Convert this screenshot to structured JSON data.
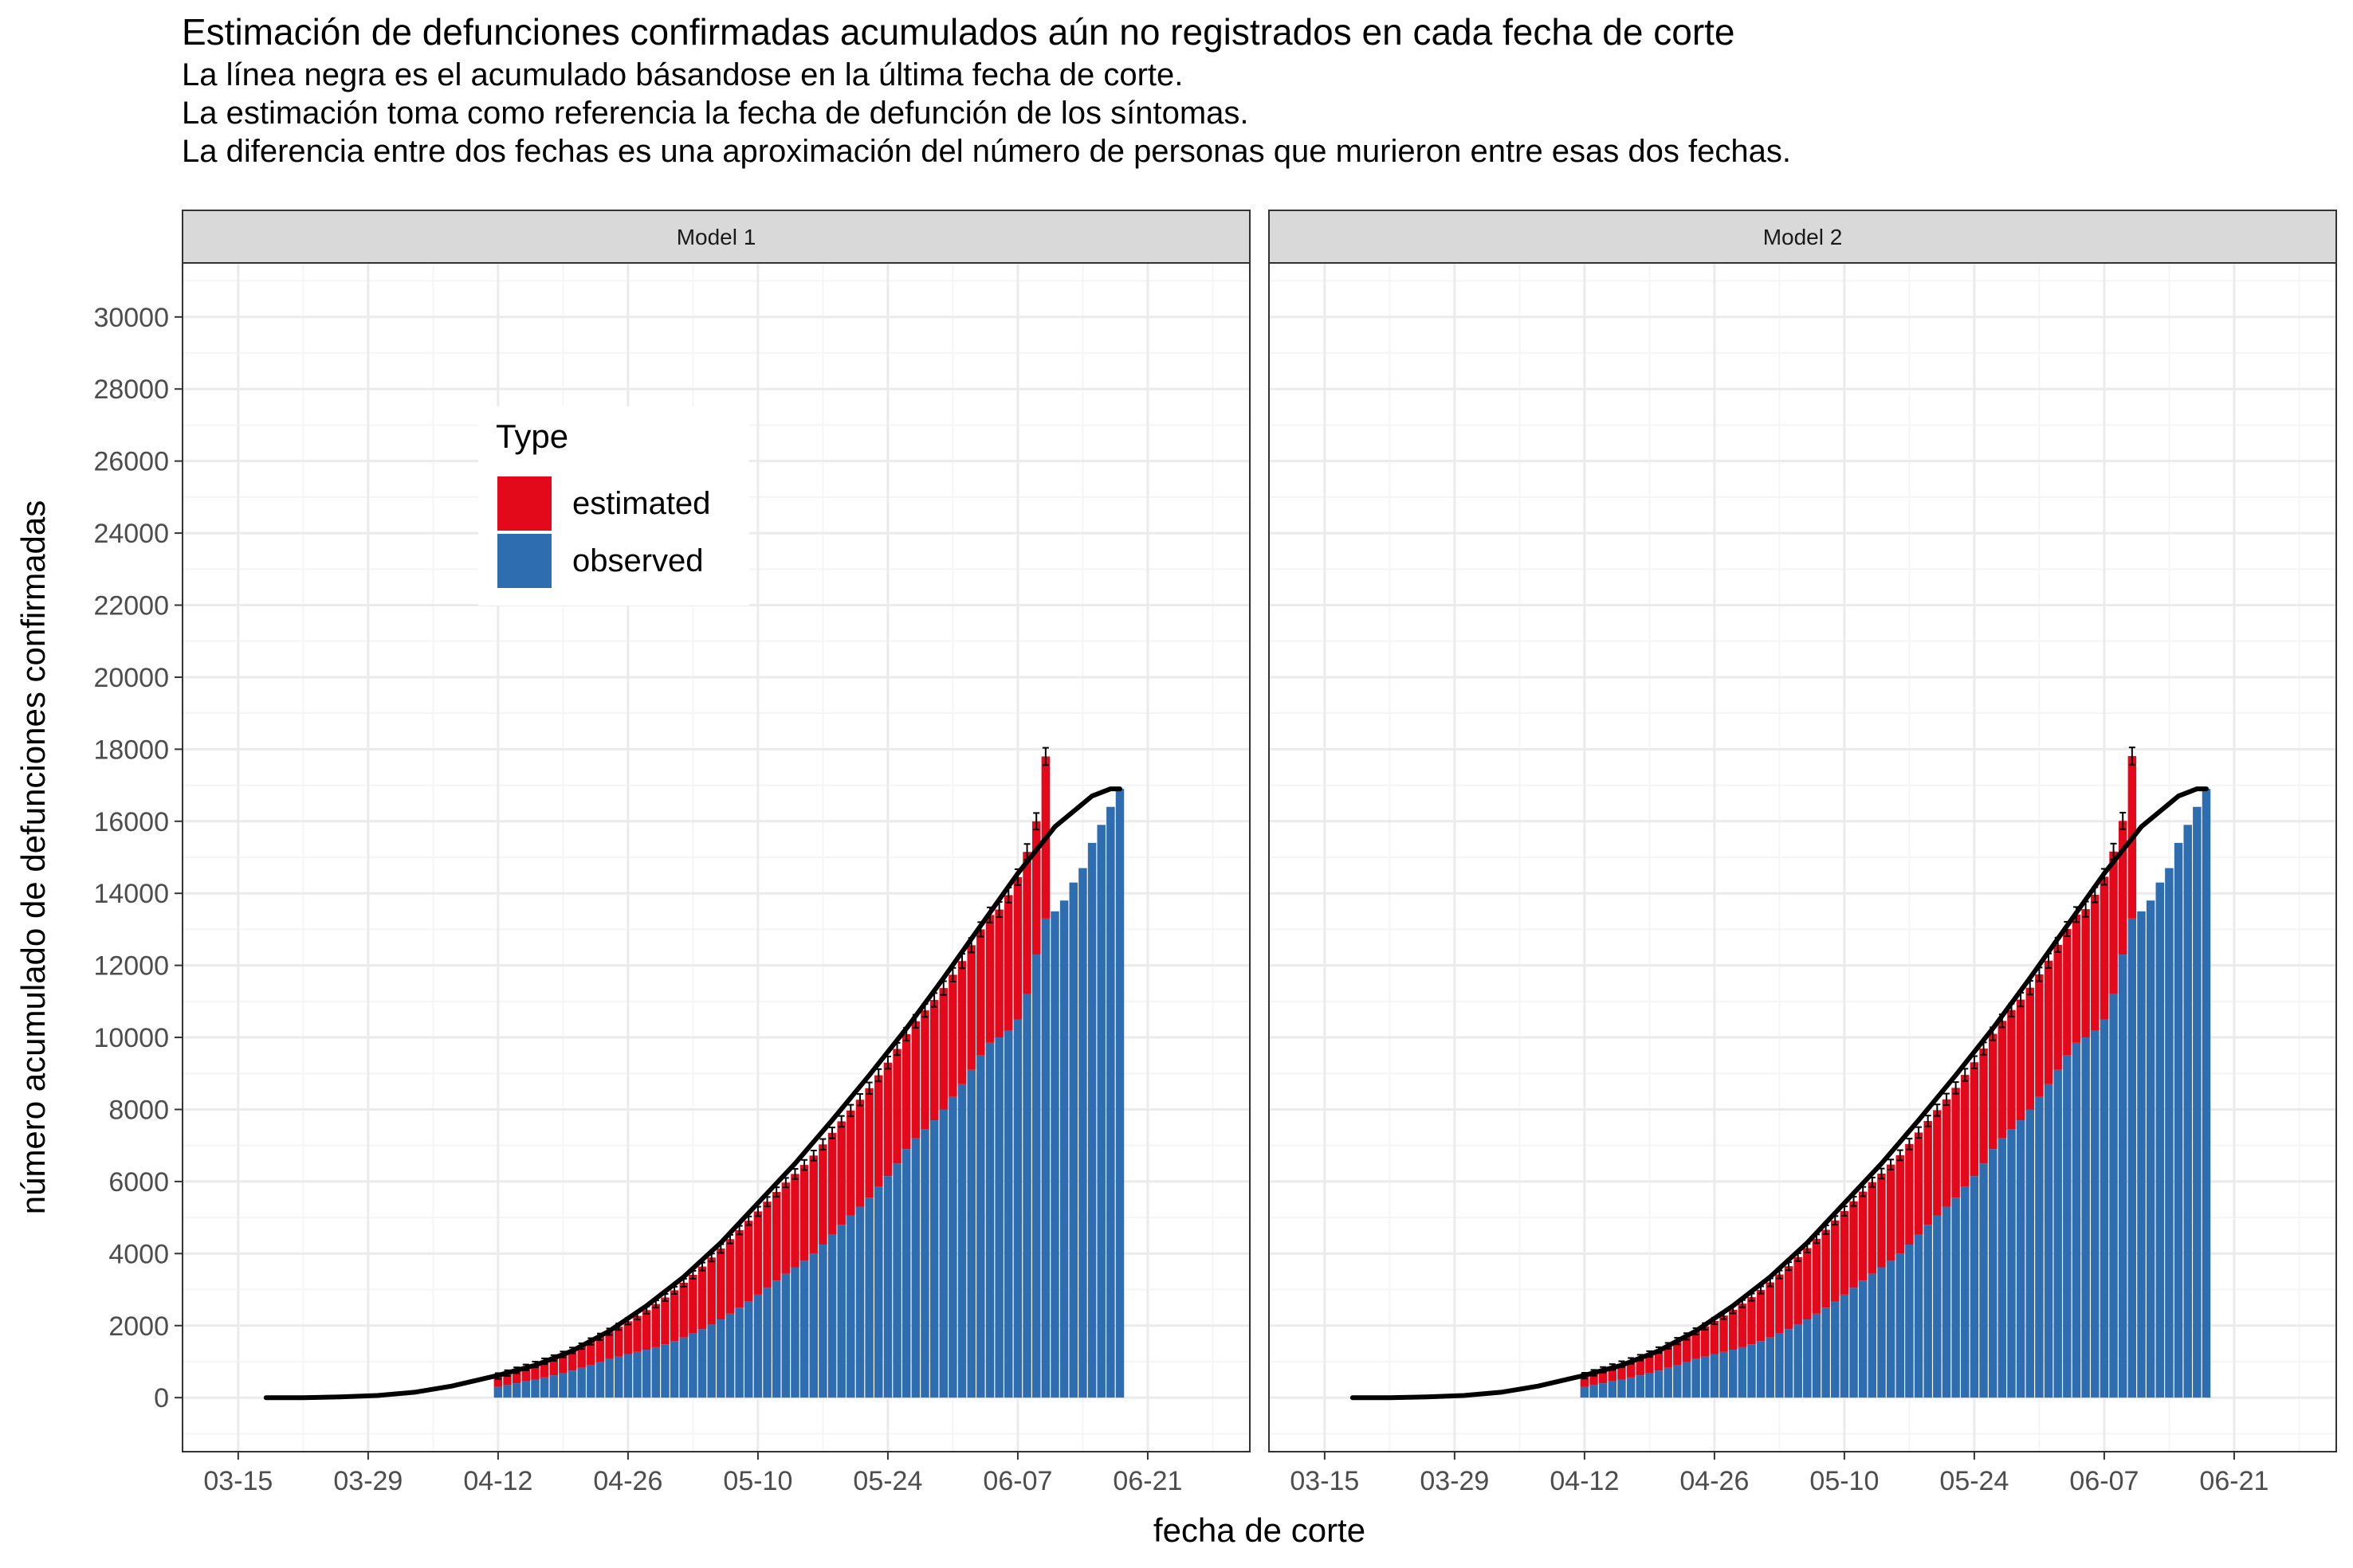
{
  "title": "Estimación de defunciones confirmadas acumulados aún no registrados en cada fecha de corte",
  "subtitle_lines": [
    "La línea negra es el acumulado básandose en la última fecha de corte.",
    "La estimación toma como referencia la fecha de defunción de los síntomas.",
    "La diferencia entre dos fechas es una aproximación del número de personas que murieron entre esas dos fechas."
  ],
  "colors": {
    "estimated": "#E3091A",
    "observed": "#2E6DB0",
    "strip_fill": "#D9D9D9",
    "grid_major": "#EBEBEB",
    "grid_minor": "#F5F5F5",
    "panel_border": "#333333",
    "line": "#000000"
  },
  "chart_data": {
    "type": "bar",
    "stacked": true,
    "xlabel": "fecha de corte",
    "ylabel": "número acumulado de defunciones confirmadas",
    "x_range": [
      "2020-03-09",
      "2020-07-02"
    ],
    "x_ticks": [
      "03-15",
      "03-29",
      "04-12",
      "04-26",
      "05-10",
      "05-24",
      "06-07",
      "06-21"
    ],
    "ylim": [
      -1500,
      31500
    ],
    "y_ticks": [
      0,
      2000,
      4000,
      6000,
      8000,
      10000,
      12000,
      14000,
      16000,
      18000,
      20000,
      22000,
      24000,
      26000,
      28000,
      30000
    ],
    "grid": true,
    "legend": {
      "title": "Type",
      "position": "top-left inside first panel",
      "entries": [
        {
          "key": "estimated",
          "label": "estimated"
        },
        {
          "key": "observed",
          "label": "observed"
        }
      ]
    },
    "facets": [
      {
        "label": "Model 1",
        "bars": {
          "start_date": "2020-04-12",
          "observed": [
            300,
            350,
            400,
            450,
            500,
            560,
            620,
            680,
            750,
            830,
            910,
            990,
            1070,
            1140,
            1210,
            1270,
            1330,
            1400,
            1480,
            1570,
            1670,
            1780,
            1900,
            2030,
            2170,
            2330,
            2500,
            2680,
            2860,
            3050,
            3250,
            3440,
            3620,
            3800,
            4000,
            4250,
            4520,
            4800,
            5050,
            5300,
            5550,
            5850,
            6150,
            6500,
            6900,
            7200,
            7450,
            7700,
            8000,
            8350,
            8700,
            9100,
            9500,
            9850,
            10000,
            10200,
            10500,
            11200,
            12300,
            13300,
            13500,
            13800,
            14300,
            14700,
            15400,
            15900,
            16400,
            16900
          ],
          "estimated": [
            300,
            330,
            360,
            390,
            420,
            450,
            480,
            520,
            560,
            600,
            650,
            700,
            760,
            830,
            910,
            1000,
            1100,
            1200,
            1300,
            1410,
            1520,
            1630,
            1740,
            1860,
            1970,
            2070,
            2150,
            2230,
            2310,
            2390,
            2460,
            2530,
            2590,
            2660,
            2720,
            2780,
            2830,
            2870,
            2920,
            2970,
            3040,
            3100,
            3150,
            3180,
            3190,
            3250,
            3300,
            3340,
            3370,
            3390,
            3420,
            3460,
            3500,
            3550,
            3550,
            3750,
            3950,
            3950,
            3700,
            4500,
            0,
            0,
            0,
            0,
            0,
            0,
            0,
            0
          ],
          "error": [
            80,
            80,
            80,
            80,
            80,
            80,
            80,
            80,
            80,
            80,
            90,
            90,
            90,
            90,
            90,
            100,
            100,
            100,
            100,
            100,
            110,
            110,
            110,
            110,
            120,
            120,
            120,
            120,
            130,
            130,
            130,
            130,
            140,
            140,
            140,
            150,
            150,
            150,
            160,
            160,
            160,
            170,
            170,
            170,
            180,
            180,
            180,
            190,
            190,
            190,
            200,
            200,
            200,
            210,
            210,
            210,
            220,
            220,
            230,
            240,
            0,
            0,
            0,
            0,
            0,
            0,
            0,
            0
          ]
        }
      },
      {
        "label": "Model 2",
        "bars": {
          "start_date": "2020-04-12",
          "observed": [
            300,
            350,
            400,
            450,
            500,
            560,
            620,
            680,
            750,
            830,
            910,
            990,
            1070,
            1140,
            1210,
            1270,
            1330,
            1400,
            1480,
            1570,
            1670,
            1780,
            1900,
            2030,
            2170,
            2330,
            2500,
            2680,
            2860,
            3050,
            3250,
            3440,
            3620,
            3800,
            4000,
            4250,
            4520,
            4800,
            5050,
            5300,
            5550,
            5850,
            6150,
            6500,
            6900,
            7200,
            7450,
            7700,
            8000,
            8350,
            8700,
            9100,
            9500,
            9850,
            10000,
            10200,
            10500,
            11200,
            12300,
            13300,
            13500,
            13800,
            14300,
            14700,
            15400,
            15900,
            16400,
            16900
          ],
          "estimated": [
            310,
            340,
            370,
            400,
            430,
            460,
            490,
            530,
            570,
            610,
            660,
            710,
            770,
            840,
            920,
            1010,
            1110,
            1210,
            1310,
            1420,
            1530,
            1640,
            1750,
            1870,
            1980,
            2080,
            2160,
            2240,
            2320,
            2400,
            2470,
            2540,
            2600,
            2670,
            2730,
            2790,
            2840,
            2880,
            2930,
            2980,
            3050,
            3110,
            3160,
            3190,
            3200,
            3260,
            3310,
            3350,
            3380,
            3400,
            3430,
            3470,
            3510,
            3560,
            3560,
            3760,
            3960,
            3960,
            3710,
            4510,
            0,
            0,
            0,
            0,
            0,
            0,
            0,
            0
          ],
          "error": [
            80,
            80,
            80,
            80,
            80,
            80,
            80,
            80,
            80,
            80,
            90,
            90,
            90,
            90,
            90,
            100,
            100,
            100,
            100,
            100,
            110,
            110,
            110,
            110,
            120,
            120,
            120,
            120,
            130,
            130,
            130,
            130,
            140,
            140,
            140,
            150,
            150,
            150,
            160,
            160,
            160,
            170,
            170,
            170,
            180,
            180,
            180,
            190,
            190,
            190,
            200,
            200,
            200,
            210,
            210,
            210,
            220,
            220,
            230,
            240,
            0,
            0,
            0,
            0,
            0,
            0,
            0,
            0
          ]
        }
      }
    ],
    "line": {
      "description": "acumulado basado en la última fecha de corte",
      "points": [
        {
          "x": "2020-03-18",
          "y": 0
        },
        {
          "x": "2020-03-22",
          "y": 0
        },
        {
          "x": "2020-03-26",
          "y": 20
        },
        {
          "x": "2020-03-30",
          "y": 60
        },
        {
          "x": "2020-04-03",
          "y": 150
        },
        {
          "x": "2020-04-07",
          "y": 320
        },
        {
          "x": "2020-04-12",
          "y": 620
        },
        {
          "x": "2020-04-16",
          "y": 900
        },
        {
          "x": "2020-04-20",
          "y": 1300
        },
        {
          "x": "2020-04-24",
          "y": 1850
        },
        {
          "x": "2020-04-28",
          "y": 2550
        },
        {
          "x": "2020-05-02",
          "y": 3350
        },
        {
          "x": "2020-05-06",
          "y": 4300
        },
        {
          "x": "2020-05-10",
          "y": 5400
        },
        {
          "x": "2020-05-14",
          "y": 6500
        },
        {
          "x": "2020-05-18",
          "y": 7700
        },
        {
          "x": "2020-05-22",
          "y": 8950
        },
        {
          "x": "2020-05-26",
          "y": 10250
        },
        {
          "x": "2020-05-30",
          "y": 11650
        },
        {
          "x": "2020-06-03",
          "y": 13100
        },
        {
          "x": "2020-06-07",
          "y": 14550
        },
        {
          "x": "2020-06-11",
          "y": 15850
        },
        {
          "x": "2020-06-15",
          "y": 16700
        },
        {
          "x": "2020-06-17",
          "y": 16900
        },
        {
          "x": "2020-06-18",
          "y": 16900
        }
      ]
    }
  }
}
